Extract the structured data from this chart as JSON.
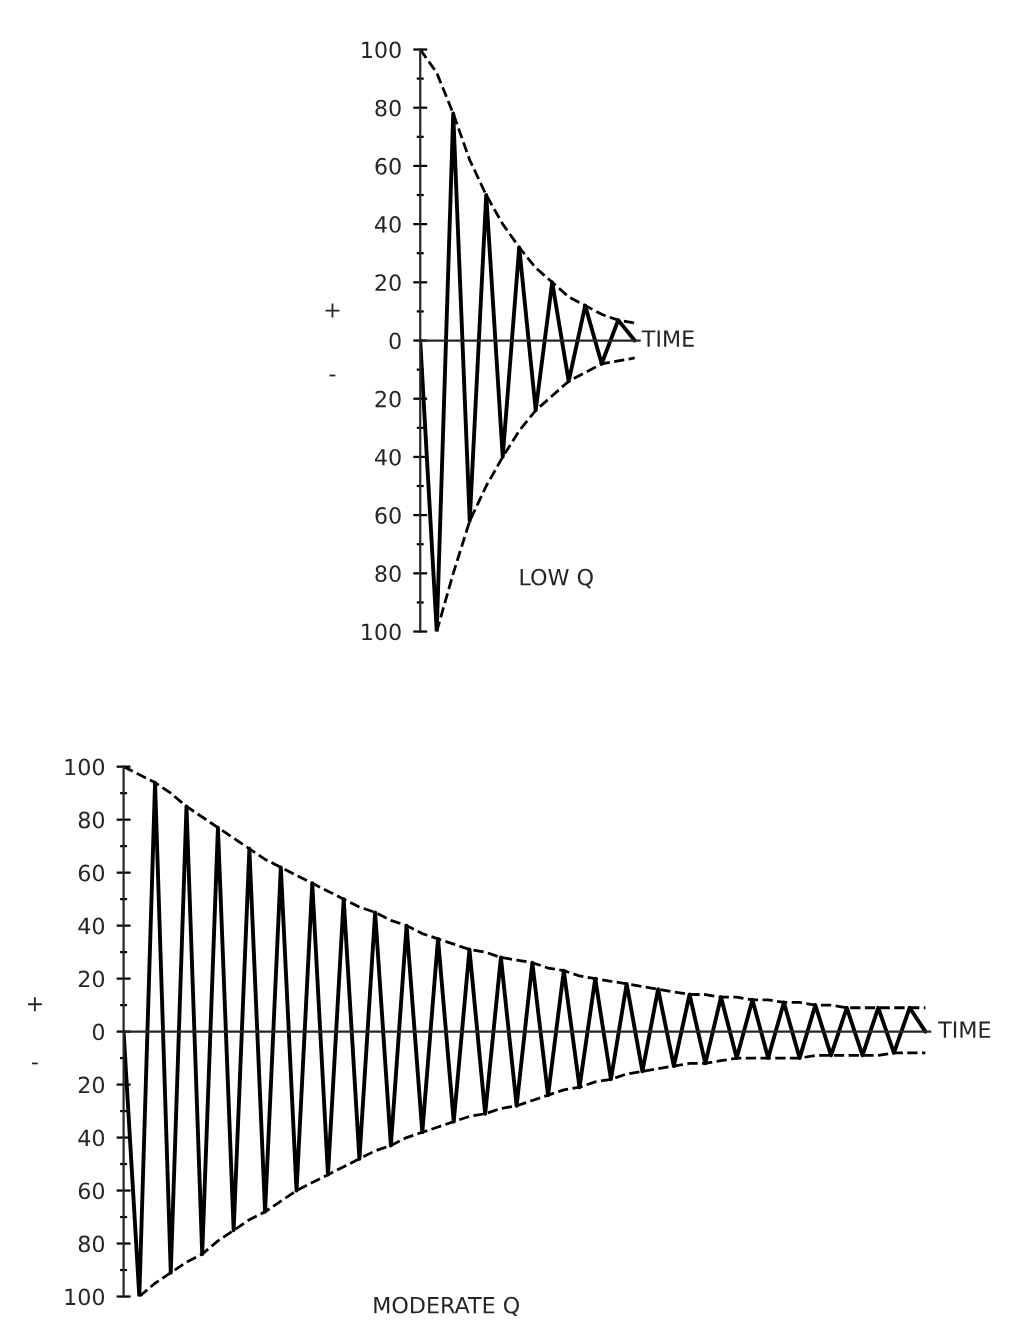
{
  "chart_data": [
    {
      "type": "line",
      "xlabel": "TIME",
      "annotations": [
        "+",
        "-",
        "LOW Q"
      ],
      "tick_labels": "y",
      "legend": false,
      "marker": "none",
      "categories": [
        null,
        null,
        null,
        null,
        null,
        null,
        null,
        null,
        null,
        null,
        null,
        null,
        null,
        null
      ],
      "ylim": [
        -100,
        100
      ],
      "yticks": [
        {
          "value": -100,
          "label": "100"
        },
        {
          "value": -90,
          "label": null
        },
        {
          "value": -80,
          "label": "80"
        },
        {
          "value": -70,
          "label": null
        },
        {
          "value": -60,
          "label": "60"
        },
        {
          "value": -50,
          "label": null
        },
        {
          "value": -40,
          "label": "40"
        },
        {
          "value": -30,
          "label": null
        },
        {
          "value": -20,
          "label": "20"
        },
        {
          "value": -10,
          "label": null
        },
        0,
        {
          "value": 10,
          "label": null
        },
        20,
        {
          "value": 30,
          "label": null
        },
        40,
        {
          "value": 50,
          "label": null
        },
        60,
        {
          "value": 70,
          "label": null
        },
        80,
        {
          "value": 90,
          "label": null
        },
        100
      ],
      "series": [
        {
          "color": "#000000",
          "line_style": "solid",
          "values": [
            0,
            -100,
            78,
            -62,
            50,
            -40,
            32,
            -24,
            20,
            -14,
            12,
            -8,
            7,
            0
          ]
        },
        {
          "color": "#000000",
          "line_style": "dashed",
          "values": [
            100,
            92,
            78,
            62,
            50,
            40,
            32,
            25,
            20,
            15,
            12,
            9,
            7,
            6
          ]
        },
        {
          "color": "#000000",
          "line_style": "dashed",
          "values": [
            null,
            -100,
            -80,
            -62,
            -50,
            -40,
            -31,
            -24,
            -19,
            -14,
            -11,
            -8,
            -7,
            -6
          ]
        }
      ]
    },
    {
      "type": "line",
      "xlabel": "TIME",
      "annotations": [
        "+",
        "-",
        "MODERATE Q"
      ],
      "tick_labels": "y",
      "legend": false,
      "marker": "none",
      "categories": [
        null,
        null,
        null,
        null,
        null,
        null,
        null,
        null,
        null,
        null,
        null,
        null,
        null,
        null,
        null,
        null,
        null,
        null,
        null,
        null,
        null,
        null,
        null,
        null,
        null,
        null,
        null,
        null,
        null,
        null,
        null,
        null,
        null,
        null,
        null,
        null,
        null,
        null,
        null,
        null,
        null,
        null,
        null,
        null,
        null,
        null,
        null,
        null,
        null,
        null,
        null,
        null
      ],
      "ylim": [
        -100,
        100
      ],
      "yticks": [
        {
          "value": -100,
          "label": "100"
        },
        {
          "value": -90,
          "label": null
        },
        {
          "value": -80,
          "label": "80"
        },
        {
          "value": -70,
          "label": null
        },
        {
          "value": -60,
          "label": "60"
        },
        {
          "value": -50,
          "label": null
        },
        {
          "value": -40,
          "label": "40"
        },
        {
          "value": -30,
          "label": null
        },
        {
          "value": -20,
          "label": "20"
        },
        {
          "value": -10,
          "label": null
        },
        0,
        {
          "value": 10,
          "label": null
        },
        20,
        {
          "value": 30,
          "label": null
        },
        40,
        {
          "value": 50,
          "label": null
        },
        60,
        {
          "value": 70,
          "label": null
        },
        80,
        {
          "value": 90,
          "label": null
        },
        100
      ],
      "series": [
        {
          "color": "#000000",
          "line_style": "solid",
          "values": [
            0,
            -100,
            94,
            -91,
            85,
            -84,
            77,
            -75,
            69,
            -68,
            62,
            -60,
            56,
            -54,
            50,
            -48,
            45,
            -43,
            40,
            -38,
            35,
            -34,
            31,
            -31,
            28,
            -28,
            26,
            -24,
            23,
            -21,
            20,
            -18,
            18,
            -15,
            16,
            -13,
            14,
            -12,
            13,
            -10,
            12,
            -10,
            11,
            -10,
            10,
            -9,
            9,
            -9,
            9,
            -8,
            9,
            0
          ]
        },
        {
          "color": "#000000",
          "line_style": "dashed",
          "values": [
            100,
            97,
            94,
            90,
            85,
            81,
            77,
            73,
            69,
            65,
            62,
            59,
            56,
            53,
            50,
            47,
            45,
            42,
            40,
            37,
            35,
            33,
            31,
            30,
            28,
            27,
            26,
            24,
            23,
            21,
            20,
            19,
            18,
            17,
            16,
            15,
            14,
            14,
            13,
            13,
            12,
            12,
            11,
            11,
            10,
            10,
            9,
            9,
            9,
            9,
            9,
            9
          ]
        },
        {
          "color": "#000000",
          "line_style": "dashed",
          "values": [
            null,
            -100,
            -95,
            -91,
            -87,
            -84,
            -79,
            -75,
            -71,
            -68,
            -64,
            -60,
            -57,
            -54,
            -51,
            -48,
            -45,
            -43,
            -40,
            -38,
            -36,
            -34,
            -32,
            -31,
            -29,
            -28,
            -26,
            -24,
            -22,
            -21,
            -19,
            -18,
            -16,
            -15,
            -14,
            -13,
            -12,
            -12,
            -11,
            -10,
            -10,
            -10,
            -10,
            -10,
            -9,
            -9,
            -9,
            -9,
            -9,
            -8,
            -8,
            -8
          ]
        }
      ]
    }
  ]
}
